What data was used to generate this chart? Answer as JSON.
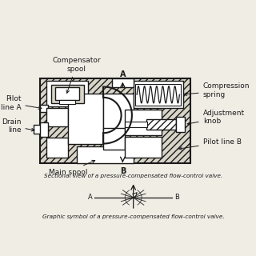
{
  "fig_bg": "#f0ede5",
  "line_color": "#1a1a1a",
  "hatch_fc": "#d8d4c8",
  "white": "#ffffff",
  "title1": "Sectional view of a pressure-compensated flow-control valve.",
  "title2": "Graphic symbol of a pressure-compensated flow-control valve.",
  "label_compensator": "Compensator\nspool",
  "label_pilot_a": "Pilot\nline A",
  "label_drain": "Drain\nline",
  "label_main": "Main spool",
  "label_spring": "Compression\nspring",
  "label_knob": "Adjustment\nknob",
  "label_pilot_b": "Pilot line B",
  "label_A": "A",
  "label_B": "B",
  "label_sym_A": "A",
  "label_sym_B": "B"
}
